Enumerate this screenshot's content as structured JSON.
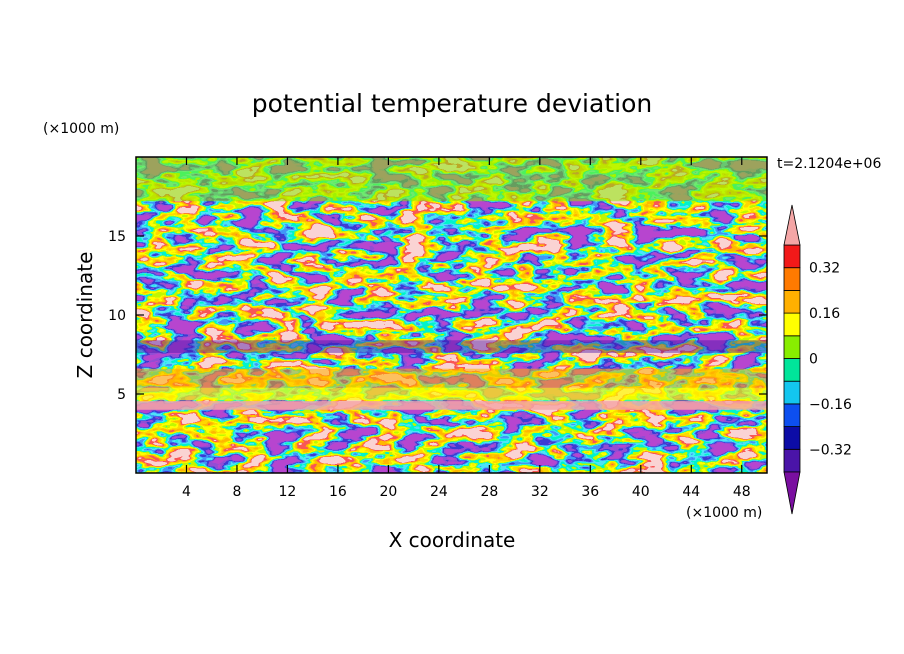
{
  "chart_data": {
    "type": "heatmap",
    "title": "potential temperature deviation",
    "xlabel": "X coordinate",
    "ylabel": "Z coordinate",
    "x_unit": "(×1000 m)",
    "y_unit": "(×1000 m)",
    "time_label": "t=2.1204e+06",
    "xlim": [
      0,
      50
    ],
    "ylim": [
      0,
      20
    ],
    "x_ticks": [
      4,
      8,
      12,
      16,
      20,
      24,
      28,
      32,
      36,
      40,
      44,
      48
    ],
    "y_ticks": [
      5,
      10,
      15
    ],
    "colorbar": {
      "levels": [
        -0.4,
        -0.32,
        -0.24,
        -0.16,
        -0.08,
        0,
        0.08,
        0.16,
        0.24,
        0.32,
        0.4
      ],
      "labels": [
        "0.32",
        "0.16",
        "0",
        "−0.16",
        "−0.32"
      ],
      "label_values": [
        0.32,
        0.16,
        0,
        -0.16,
        -0.32
      ],
      "colors": [
        "#7a0fa0",
        "#4a14a8",
        "#0c0ca6",
        "#0d4ff0",
        "#13c6ef",
        "#00e59a",
        "#88ee00",
        "#ffff00",
        "#ffb000",
        "#ff7a00",
        "#f21919",
        "#f4a6a6"
      ],
      "extend": "both"
    },
    "grid": false,
    "legend": "right"
  }
}
